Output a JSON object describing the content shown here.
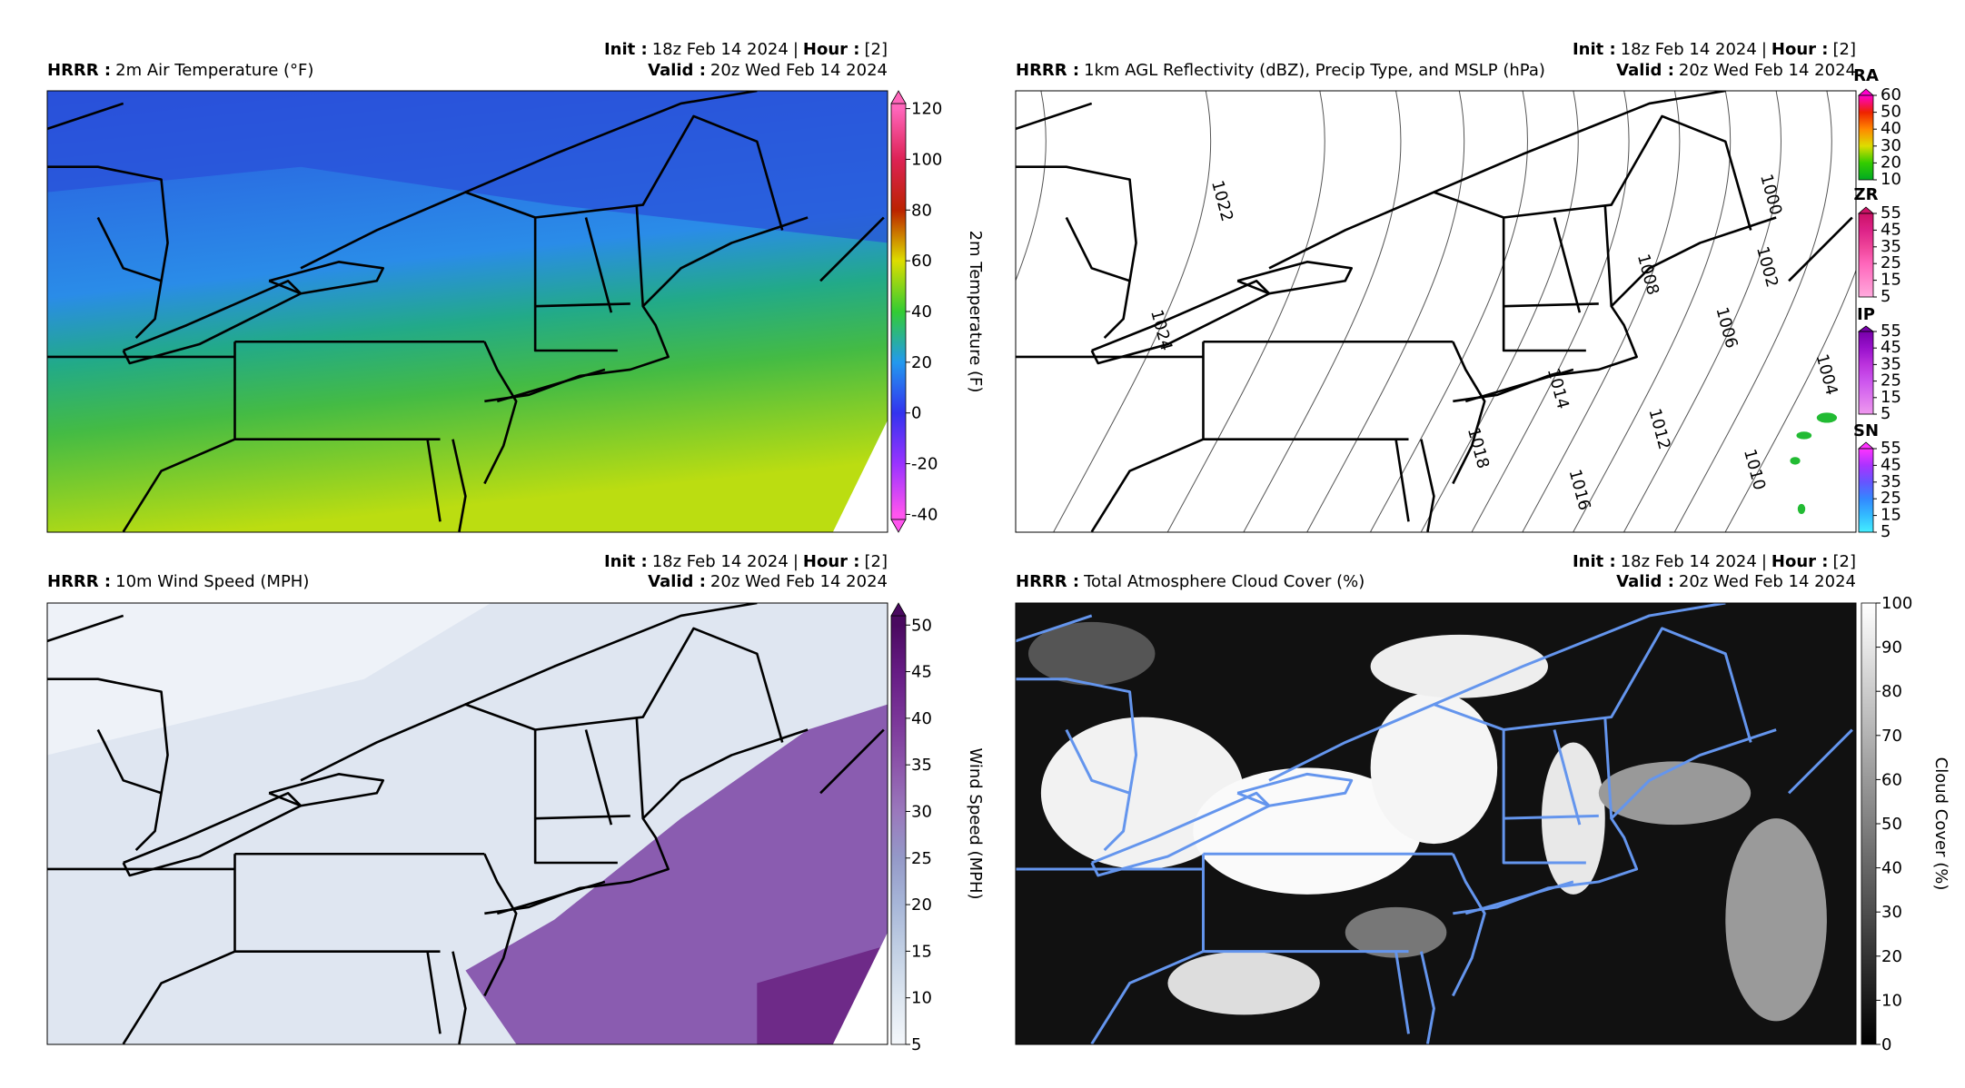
{
  "header": {
    "model_label": "HRRR :",
    "init_label": "Init :",
    "init": "18z Feb 14 2024",
    "separator": "|",
    "hour_label": "Hour :",
    "hour": "[2]",
    "valid_label": "Valid :",
    "valid": "20z Wed Feb 14 2024"
  },
  "panels": [
    {
      "title": "2m Air Temperature (°F)",
      "colorbar": {
        "label": "2m Temperature (F)",
        "lim": [
          -42,
          122
        ],
        "ticks": [
          -40,
          -20,
          0,
          20,
          40,
          60,
          80,
          100,
          120
        ],
        "colors": [
          "#ff55ee",
          "#9933ff",
          "#3333ee",
          "#2299ee",
          "#33cc33",
          "#dddd00",
          "#bb2200",
          "#dd2255",
          "#ff66bb"
        ],
        "extend": "both"
      }
    },
    {
      "title": "1km AGL Reflectivity (dBZ), Precip Type, and MSLP (hPa)",
      "precip_legends": [
        {
          "label": "RA",
          "lim": [
            10,
            60
          ],
          "ticks": [
            10,
            20,
            30,
            40,
            50,
            60
          ],
          "colors": [
            "#00aa22",
            "#33cc00",
            "#dddd00",
            "#ff8800",
            "#ee2200",
            "#ff00cc"
          ]
        },
        {
          "label": "ZR",
          "lim": [
            5,
            55
          ],
          "ticks": [
            5,
            15,
            25,
            35,
            45,
            55
          ],
          "colors": [
            "#ffaadd",
            "#ff88cc",
            "#ff66bb",
            "#ee4499",
            "#dd2288",
            "#cc1166"
          ]
        },
        {
          "label": "IP",
          "lim": [
            5,
            55
          ],
          "ticks": [
            5,
            15,
            25,
            35,
            45,
            55
          ],
          "colors": [
            "#ee99ee",
            "#dd77ee",
            "#cc55ee",
            "#bb33dd",
            "#9911cc",
            "#7700aa"
          ]
        },
        {
          "label": "SN",
          "lim": [
            5,
            55
          ],
          "ticks": [
            5,
            15,
            25,
            35,
            45,
            55
          ],
          "colors": [
            "#44eeff",
            "#33bbff",
            "#3388ff",
            "#6655ff",
            "#aa33ff",
            "#ff33ff"
          ]
        }
      ],
      "contour_labels": [
        1022,
        1024,
        1000,
        1002,
        1004,
        1006,
        1008,
        1010,
        1012,
        1014,
        1016,
        1018
      ]
    },
    {
      "title": "10m Wind Speed (MPH)",
      "colorbar": {
        "label": "Wind Speed (MPH)",
        "lim": [
          5,
          51
        ],
        "ticks": [
          5,
          10,
          15,
          20,
          25,
          30,
          35,
          40,
          45,
          50
        ],
        "colors": [
          "#f4f7fb",
          "#dde6f0",
          "#c2d0e4",
          "#a7b6d8",
          "#9499c8",
          "#9a78bc",
          "#8c55aa",
          "#7a3598",
          "#661c84",
          "#4a0a60"
        ],
        "extend": "max"
      }
    },
    {
      "title": "Total Atmosphere Cloud Cover (%)",
      "colorbar": {
        "label": "Cloud Cover (%)",
        "lim": [
          0,
          100
        ],
        "ticks": [
          0,
          10,
          20,
          30,
          40,
          50,
          60,
          70,
          80,
          90,
          100
        ],
        "colors": [
          "#000000",
          "#1a1a1a",
          "#333333",
          "#4d4d4d",
          "#666666",
          "#808080",
          "#999999",
          "#b3b3b3",
          "#cccccc",
          "#e6e6e6",
          "#ffffff"
        ],
        "extend": "neither"
      }
    }
  ]
}
